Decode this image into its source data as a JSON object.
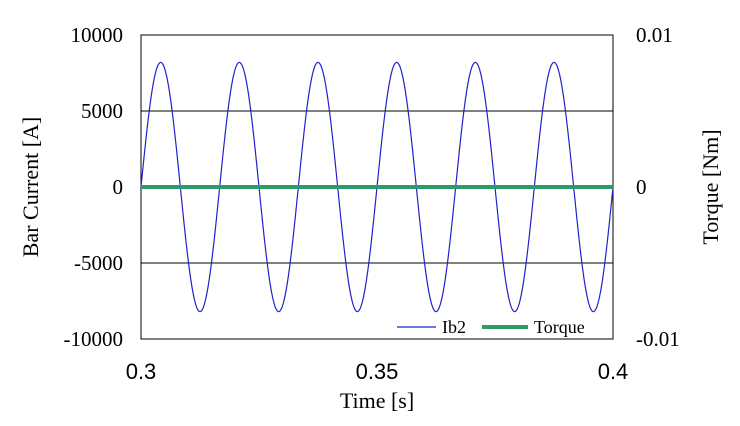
{
  "chart_data": {
    "type": "line",
    "xlabel": "Time [s]",
    "ylabel": "Bar Current [A]",
    "y2label": "Torque [Nm]",
    "xlim": [
      0.3,
      0.4
    ],
    "ylim": [
      -10000,
      10000
    ],
    "y2lim": [
      -0.01,
      0.01
    ],
    "x_ticks": [
      "0.3",
      "0.35",
      "0.4"
    ],
    "y_ticks": [
      "10000",
      "5000",
      "0",
      "-5000",
      "-10000"
    ],
    "y2_ticks": [
      "0.01",
      "0",
      "-0.01"
    ],
    "grid": "horizontal",
    "legend_position": "bottom-right",
    "series": [
      {
        "name": "Ib2",
        "axis": "left",
        "color": "#2222cc",
        "amplitude": 8200,
        "frequency_hz": 60,
        "phase_rad": 0.0,
        "description": "sinusoid"
      },
      {
        "name": "Torque",
        "axis": "right",
        "color": "#2e9a6a",
        "x": [
          0.3,
          0.4
        ],
        "y": [
          0,
          0
        ]
      }
    ]
  }
}
